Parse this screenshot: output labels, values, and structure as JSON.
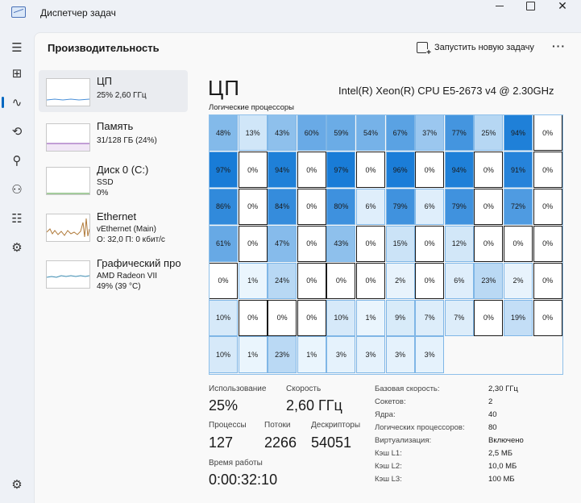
{
  "window": {
    "title": "Диспетчер задач"
  },
  "header": {
    "title": "Производительность",
    "run_task": "Запустить новую задачу",
    "more": "···"
  },
  "nav": {
    "items": [
      {
        "name": "menu-icon",
        "glyph": "☰"
      },
      {
        "name": "processes-icon",
        "glyph": "⊞"
      },
      {
        "name": "performance-icon",
        "glyph": "∿",
        "active": true
      },
      {
        "name": "app-history-icon",
        "glyph": "⟲"
      },
      {
        "name": "startup-icon",
        "glyph": "⚲"
      },
      {
        "name": "users-icon",
        "glyph": "⚇"
      },
      {
        "name": "details-icon",
        "glyph": "☷"
      },
      {
        "name": "services-icon",
        "glyph": "⚙"
      }
    ],
    "settings_glyph": "⚙"
  },
  "devices": [
    {
      "name": "ЦП",
      "sub1": "25% 2,60 ГГц",
      "sub2": "",
      "sub3": "",
      "color": "#4a90d9",
      "selected": true
    },
    {
      "name": "Память",
      "sub1": "31/128 ГБ (24%)",
      "sub2": "",
      "sub3": "",
      "color": "#8b4ab0"
    },
    {
      "name": "Диск 0 (C:)",
      "sub1": "SSD",
      "sub2": "0%",
      "sub3": "",
      "color": "#4a9a3a"
    },
    {
      "name": "Ethernet",
      "sub1": "vEthernet (Main)",
      "sub2": "О: 32,0 П: 0 кбит/с",
      "sub3": "",
      "color": "#b07a3a"
    },
    {
      "name": "Графический про",
      "sub1": "AMD Radeon VII",
      "sub2": "49% (39 °C)",
      "sub3": "",
      "color": "#3a8ab0"
    }
  ],
  "cpu": {
    "title": "ЦП",
    "model": "Intel(R) Xeon(R) CPU E5-2673 v4 @ 2.30GHz",
    "logical_label": "Логические процессоры",
    "cores": [
      48,
      13,
      43,
      60,
      59,
      54,
      67,
      37,
      77,
      25,
      94,
      0,
      97,
      0,
      94,
      0,
      97,
      0,
      96,
      0,
      94,
      0,
      91,
      0,
      86,
      0,
      84,
      0,
      80,
      6,
      79,
      6,
      79,
      0,
      72,
      0,
      61,
      0,
      47,
      0,
      43,
      0,
      15,
      0,
      12,
      0,
      0,
      0,
      0,
      1,
      24,
      0,
      0,
      0,
      2,
      0,
      6,
      23,
      2,
      0,
      10,
      0,
      0,
      0,
      10,
      1,
      9,
      7,
      7,
      0,
      19,
      0,
      10,
      1,
      23,
      1,
      3,
      3,
      3,
      3
    ]
  },
  "stats": {
    "usage_label": "Использование",
    "usage_value": "25%",
    "speed_label": "Скорость",
    "speed_value": "2,60 ГГц",
    "processes_label": "Процессы",
    "processes_value": "127",
    "threads_label": "Потоки",
    "threads_value": "2266",
    "handles_label": "Дескрипторы",
    "handles_value": "54051",
    "uptime_label": "Время работы",
    "uptime_value": "0:00:32:10"
  },
  "specs": [
    {
      "k": "Базовая скорость:",
      "v": "2,30 ГГц"
    },
    {
      "k": "Сокетов:",
      "v": "2"
    },
    {
      "k": "Ядра:",
      "v": "40"
    },
    {
      "k": "Логических процессоров:",
      "v": "80"
    },
    {
      "k": "Виртуализация:",
      "v": "Включено"
    },
    {
      "k": "Кэш L1:",
      "v": "2,5 МБ"
    },
    {
      "k": "Кэш L2:",
      "v": "10,0 МБ"
    },
    {
      "k": "Кэш L3:",
      "v": "100 МБ"
    }
  ]
}
